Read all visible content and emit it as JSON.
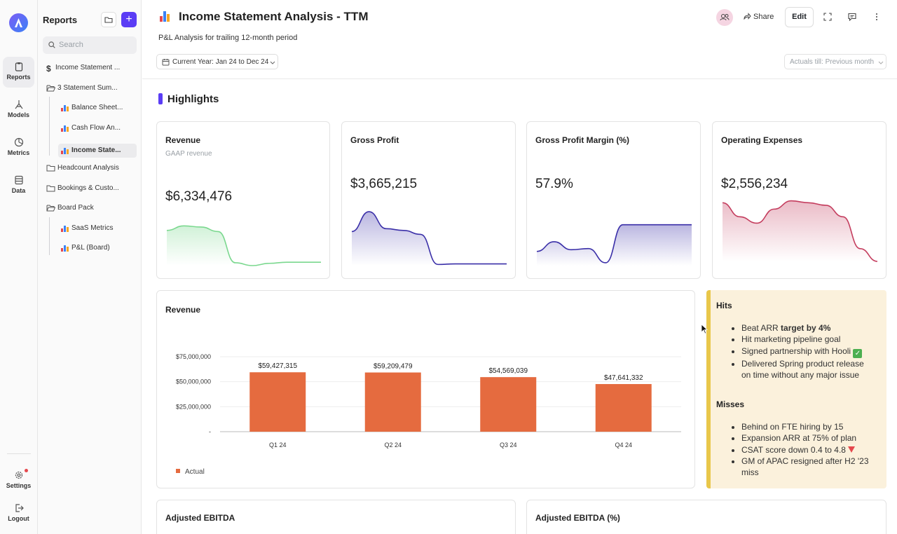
{
  "rail": {
    "items": [
      {
        "label": "Reports",
        "icon": "clipboard-icon",
        "active": true
      },
      {
        "label": "Models",
        "icon": "model-icon",
        "active": false
      },
      {
        "label": "Metrics",
        "icon": "pie-icon",
        "active": false
      },
      {
        "label": "Data",
        "icon": "database-icon",
        "active": false
      }
    ],
    "settings_label": "Settings",
    "logout_label": "Logout"
  },
  "sidebar": {
    "title": "Reports",
    "search_placeholder": "Search",
    "items": [
      {
        "label": "Income Statement ...",
        "icon": "dollar-icon"
      },
      {
        "label": "3 Statement Sum...",
        "icon": "folder-open-icon"
      },
      {
        "label": "Balance Sheet...",
        "icon": "bar-chart-icon"
      },
      {
        "label": "Cash Flow An...",
        "icon": "bar-chart-icon"
      },
      {
        "label": "Income State...",
        "icon": "bar-chart-icon",
        "selected": true
      },
      {
        "label": "Headcount Analysis",
        "icon": "folder-icon"
      },
      {
        "label": "Bookings & Custo...",
        "icon": "folder-icon"
      },
      {
        "label": "Board Pack",
        "icon": "folder-open-icon"
      },
      {
        "label": "SaaS Metrics",
        "icon": "bar-chart-icon"
      },
      {
        "label": "P&L (Board)",
        "icon": "bar-chart-icon"
      }
    ]
  },
  "header": {
    "title": "Income Statement Analysis - TTM",
    "subtitle": "P&L Analysis for trailing 12-month period",
    "share_label": "Share",
    "edit_label": "Edit",
    "date_filter": "Current Year: Jan 24 to Dec 24",
    "actuals_filter": "Actuals till: Previous month"
  },
  "highlights_title": "Highlights",
  "kpis": [
    {
      "title": "Revenue",
      "subtitle": "GAAP revenue",
      "value": "$6,334,476",
      "color": "#7bd88f",
      "trend": [
        0.62,
        0.7,
        0.68,
        0.6,
        0.05,
        0.0,
        0.04,
        0.06,
        0.06,
        0.06
      ]
    },
    {
      "title": "Gross Profit",
      "subtitle": "",
      "value": "$3,665,215",
      "color": "#3a2fa8",
      "trend": [
        0.6,
        0.95,
        0.65,
        0.62,
        0.55,
        0.02,
        0.03,
        0.03,
        0.03,
        0.03
      ]
    },
    {
      "title": "Gross Profit Margin (%)",
      "subtitle": "",
      "value": "57.9%",
      "color": "#3a2fa8",
      "trend": [
        0.25,
        0.42,
        0.28,
        0.3,
        0.05,
        0.72,
        0.72,
        0.72,
        0.72,
        0.72
      ]
    },
    {
      "title": "Operating Expenses",
      "subtitle": "",
      "value": "$2,556,234",
      "color": "#c43d5e",
      "trend": [
        0.92,
        0.7,
        0.6,
        0.82,
        0.95,
        0.92,
        0.88,
        0.7,
        0.2,
        0.0
      ]
    }
  ],
  "chart_data": {
    "type": "bar",
    "title": "Revenue",
    "categories": [
      "Q1 24",
      "Q2 24",
      "Q3 24",
      "Q4 24"
    ],
    "series": [
      {
        "name": "Actual",
        "values": [
          59427315,
          59209479,
          54569039,
          47641332
        ],
        "color": "#e56b3f"
      }
    ],
    "value_labels": [
      "$59,427,315",
      "$59,209,479",
      "$54,569,039",
      "$47,641,332"
    ],
    "y_ticks": [
      "$75,000,000",
      "$50,000,000",
      "$25,000,000",
      "-"
    ],
    "ylim": [
      0,
      75000000
    ],
    "legend": "bottom-left"
  },
  "hits": {
    "title": "Hits",
    "items": [
      {
        "pre": "Beat ARR ",
        "bold": "target by 4%",
        "post": ""
      },
      {
        "pre": "Hit marketing pipeline goal",
        "bold": "",
        "post": ""
      },
      {
        "pre": "Signed partnership with Hooli",
        "bold": "",
        "post": "",
        "check": true
      },
      {
        "pre": "Delivered Spring product release on time without any major issue",
        "bold": "",
        "post": ""
      }
    ]
  },
  "misses": {
    "title": "Misses",
    "items": [
      {
        "text": "Behind on FTE hiring by 15"
      },
      {
        "text": "Expansion ARR at 75% of plan"
      },
      {
        "text": "CSAT score down 0.4 to 4.8",
        "down": true
      },
      {
        "text": "GM of APAC resigned after H2 '23 miss"
      }
    ]
  },
  "bottom_cards": [
    "Adjusted EBITDA",
    "Adjusted EBITDA (%)"
  ]
}
